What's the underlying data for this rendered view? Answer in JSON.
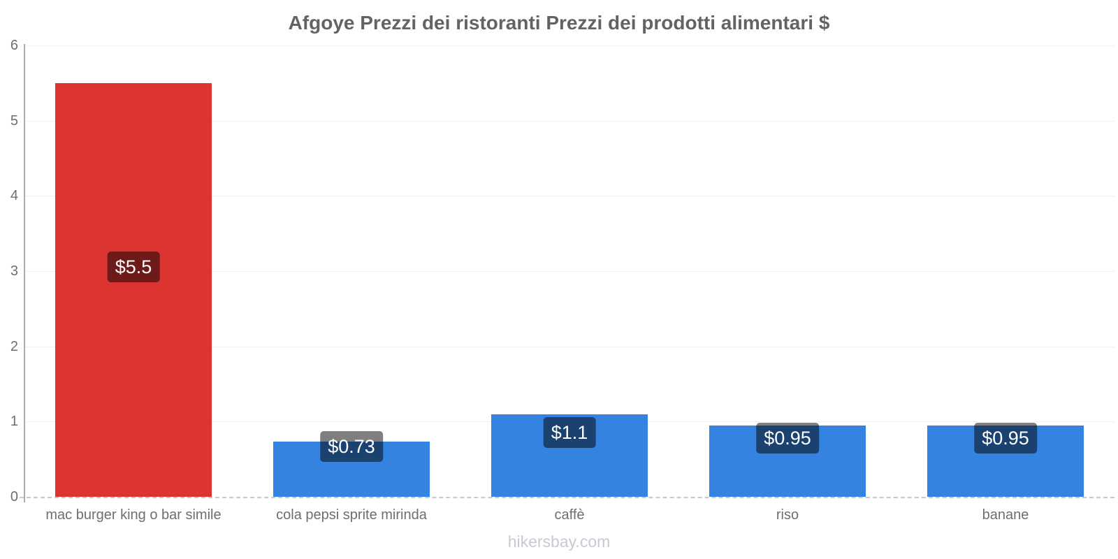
{
  "chart_data": {
    "type": "bar",
    "title": "Afgoye Prezzi dei ristoranti Prezzi dei prodotti alimentari $",
    "categories": [
      "mac burger king o bar simile",
      "cola pepsi sprite mirinda",
      "caffè",
      "riso",
      "banane"
    ],
    "values": [
      5.5,
      0.73,
      1.1,
      0.95,
      0.95
    ],
    "value_labels": [
      "$5.5",
      "$0.73",
      "$1.1",
      "$0.95",
      "$0.95"
    ],
    "bar_colors": [
      "#dc3531",
      "#3583e0",
      "#3583e0",
      "#3583e0",
      "#3583e0"
    ],
    "ylim": [
      0,
      6
    ],
    "yticks": [
      0,
      1,
      2,
      3,
      4,
      5,
      6
    ],
    "grid": true,
    "legend": false,
    "xlabel": "",
    "ylabel": "",
    "watermark": "hikersbay.com",
    "colors": {
      "red_bar": "#dc3531",
      "blue_bar": "#3583e0",
      "value_label_box": "rgba(0,0,0,0.5)",
      "value_label_text": "#ffffff",
      "title_text": "#636363",
      "axis_text": "#6e6e6e",
      "gridline": "#f0f0f0",
      "y_axis_line": "#ababab",
      "x_axis_line": "#c9c9c9",
      "watermark_text": "#c7cad1"
    }
  }
}
